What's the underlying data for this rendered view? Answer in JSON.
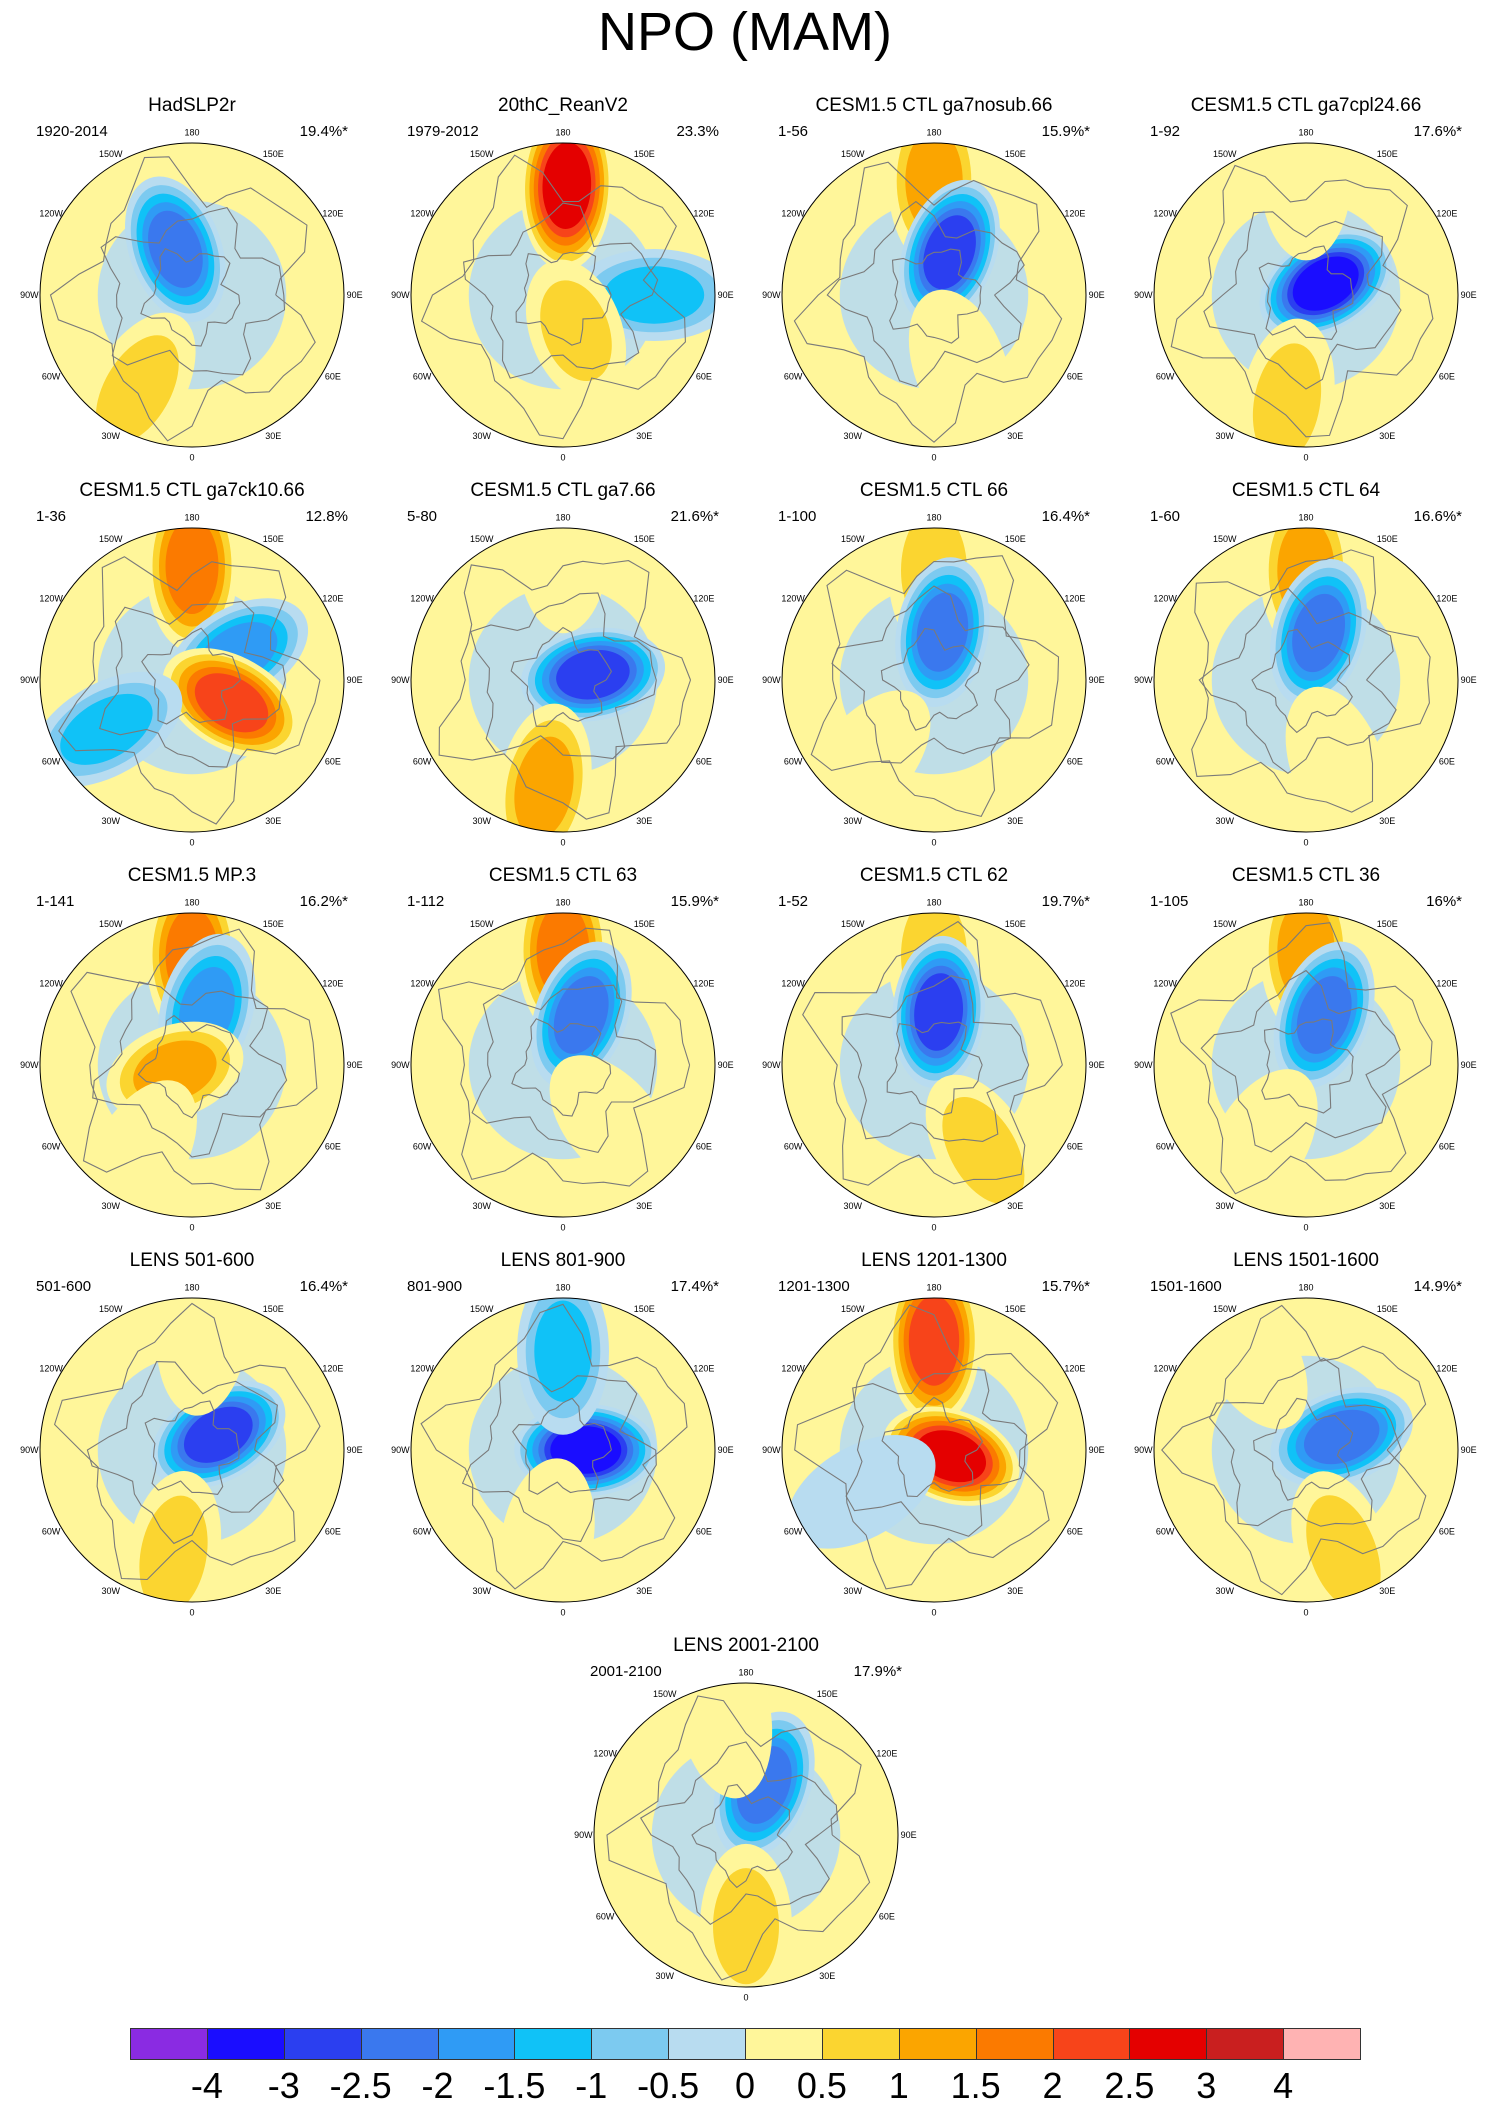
{
  "title": "NPO (MAM)",
  "colorbar": {
    "labels": [
      "-4",
      "-3",
      "-2.5",
      "-2",
      "-1.5",
      "-1",
      "-0.5",
      "0",
      "0.5",
      "1",
      "1.5",
      "2",
      "2.5",
      "3",
      "4"
    ],
    "colors": [
      "#8a2be2",
      "#1a0dff",
      "#2b3ff0",
      "#3a78ee",
      "#2f9bf5",
      "#10c2f7",
      "#7ccaf0",
      "#b8dcf0",
      "#fff69a",
      "#fbd530",
      "#fba500",
      "#fb7a00",
      "#f7441a",
      "#e40000",
      "#c91f1f",
      "#ffb3b3"
    ]
  },
  "longitude_labels": [
    "180",
    "150E",
    "120E",
    "90E",
    "60E",
    "30E",
    "0",
    "30W",
    "60W",
    "90W",
    "120W",
    "150W"
  ],
  "panels": [
    {
      "title": "HadSLP2r",
      "period": "1920-2014",
      "variance": "19.4%*",
      "centers": [
        {
          "lon": -160,
          "r": 0.32,
          "v": -2.8
        },
        {
          "lon": -30,
          "r": 0.72,
          "v": 1.1
        },
        {
          "lon": 160,
          "r": 0.75,
          "v": 0.4
        }
      ]
    },
    {
      "title": "20thC_ReanV2",
      "period": "1979-2012",
      "variance": "23.3%",
      "centers": [
        {
          "lon": 178,
          "r": 0.72,
          "v": 3.0
        },
        {
          "lon": 90,
          "r": 0.6,
          "v": -1.8
        },
        {
          "lon": 20,
          "r": 0.25,
          "v": 1.4
        }
      ]
    },
    {
      "title": "CESM1.5 CTL ga7nosub.66",
      "period": "1-56",
      "variance": "15.9%*",
      "centers": [
        {
          "lon": 180,
          "r": 0.75,
          "v": 1.6
        },
        {
          "lon": 160,
          "r": 0.3,
          "v": -3.0
        },
        {
          "lon": 20,
          "r": 0.5,
          "v": 0.6
        }
      ]
    },
    {
      "title": "CESM1.5 CTL ga7cpl24.66",
      "period": "1-92",
      "variance": "17.6%*",
      "centers": [
        {
          "lon": 120,
          "r": 0.15,
          "v": -3.5
        },
        {
          "lon": -10,
          "r": 0.72,
          "v": 1.2
        },
        {
          "lon": 180,
          "r": 0.8,
          "v": 0.5
        }
      ]
    },
    {
      "title": "CESM1.5 CTL ga7ck10.66",
      "period": "1-36",
      "variance": "12.8%",
      "centers": [
        {
          "lon": 180,
          "r": 0.75,
          "v": 2.2
        },
        {
          "lon": 120,
          "r": 0.35,
          "v": -2.3
        },
        {
          "lon": 60,
          "r": 0.3,
          "v": 2.7
        },
        {
          "lon": -60,
          "r": 0.65,
          "v": -1.6
        }
      ]
    },
    {
      "title": "CESM1.5 CTL ga7.66",
      "period": "5-80",
      "variance": "21.6%*",
      "centers": [
        {
          "lon": 100,
          "r": 0.2,
          "v": -3.2
        },
        {
          "lon": -10,
          "r": 0.72,
          "v": 1.7
        },
        {
          "lon": 180,
          "r": 0.88,
          "v": 0.8
        }
      ]
    },
    {
      "title": "CESM1.5 CTL 66",
      "period": "1-100",
      "variance": "16.4%*",
      "centers": [
        {
          "lon": 180,
          "r": 0.72,
          "v": 1.3
        },
        {
          "lon": 170,
          "r": 0.32,
          "v": -2.7
        },
        {
          "lon": -40,
          "r": 0.7,
          "v": 0.8
        }
      ]
    },
    {
      "title": "CESM1.5 CTL 64",
      "period": "1-60",
      "variance": "16.6%*",
      "centers": [
        {
          "lon": 180,
          "r": 0.72,
          "v": 1.8
        },
        {
          "lon": 165,
          "r": 0.32,
          "v": -2.6
        },
        {
          "lon": 20,
          "r": 0.6,
          "v": 0.5
        }
      ]
    },
    {
      "title": "CESM1.5 MP.3",
      "period": "1-141",
      "variance": "16.2%*",
      "centers": [
        {
          "lon": 180,
          "r": 0.72,
          "v": 2.4
        },
        {
          "lon": 165,
          "r": 0.38,
          "v": -2.4
        },
        {
          "lon": -70,
          "r": 0.12,
          "v": 1.6
        },
        {
          "lon": -30,
          "r": 0.7,
          "v": 0.9
        }
      ]
    },
    {
      "title": "CESM1.5 CTL 63",
      "period": "1-112",
      "variance": "15.9%*",
      "centers": [
        {
          "lon": 180,
          "r": 0.75,
          "v": 2.2
        },
        {
          "lon": 160,
          "r": 0.35,
          "v": -2.5
        },
        {
          "lon": 40,
          "r": 0.5,
          "v": 0.8
        }
      ]
    },
    {
      "title": "CESM1.5 CTL 62",
      "period": "1-52",
      "variance": "19.7%*",
      "centers": [
        {
          "lon": 180,
          "r": 0.72,
          "v": 1.2
        },
        {
          "lon": 175,
          "r": 0.35,
          "v": -3.0
        },
        {
          "lon": 30,
          "r": 0.65,
          "v": 1.2
        }
      ]
    },
    {
      "title": "CESM1.5 CTL 36",
      "period": "1-105",
      "variance": "16%*",
      "centers": [
        {
          "lon": 180,
          "r": 0.75,
          "v": 1.6
        },
        {
          "lon": 160,
          "r": 0.35,
          "v": -2.7
        },
        {
          "lon": -30,
          "r": 0.6,
          "v": 0.5
        }
      ]
    },
    {
      "title": "LENS 501-600",
      "period": "501-600",
      "variance": "16.4%*",
      "centers": [
        {
          "lon": 120,
          "r": 0.2,
          "v": -3.1
        },
        {
          "lon": -10,
          "r": 0.7,
          "v": 1.2
        },
        {
          "lon": 175,
          "r": 0.8,
          "v": 0.9
        }
      ]
    },
    {
      "title": "LENS 801-900",
      "period": "801-900",
      "variance": "17.4%*",
      "centers": [
        {
          "lon": 90,
          "r": 0.15,
          "v": -3.6
        },
        {
          "lon": 180,
          "r": 0.65,
          "v": -1.7
        },
        {
          "lon": -10,
          "r": 0.6,
          "v": 0.7
        }
      ]
    },
    {
      "title": "LENS 1201-1300",
      "period": "1201-1300",
      "variance": "15.7%*",
      "centers": [
        {
          "lon": 180,
          "r": 0.72,
          "v": 2.6
        },
        {
          "lon": 70,
          "r": 0.12,
          "v": 3.1
        },
        {
          "lon": -60,
          "r": 0.55,
          "v": -0.9
        }
      ]
    },
    {
      "title": "LENS 1501-1600",
      "period": "1501-1600",
      "variance": "14.9%*",
      "centers": [
        {
          "lon": 110,
          "r": 0.25,
          "v": -2.8
        },
        {
          "lon": 20,
          "r": 0.72,
          "v": 1.1
        },
        {
          "lon": -150,
          "r": 0.75,
          "v": 0.6
        }
      ]
    },
    {
      "title": "LENS 2001-2100",
      "period": "2001-2100",
      "variance": "17.9%*",
      "centers": [
        {
          "lon": 160,
          "r": 0.35,
          "v": -2.6
        },
        {
          "lon": 0,
          "r": 0.6,
          "v": 1.4
        },
        {
          "lon": -170,
          "r": 0.82,
          "v": 0.5
        }
      ]
    }
  ]
}
